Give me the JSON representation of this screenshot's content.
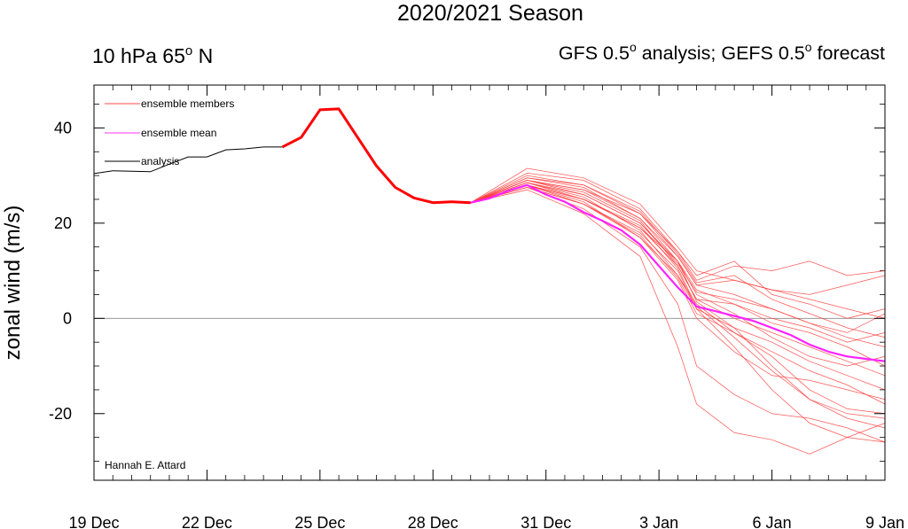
{
  "chart_data": {
    "type": "line",
    "title": "2020/2021 Season",
    "subtitle_left": {
      "text": "10 hPa 65",
      "sup": "o",
      "suffix": " N"
    },
    "subtitle_right": [
      {
        "text": "GFS 0.5",
        "sup": "o",
        "suffix": " analysis; GEFS 0.5"
      },
      {
        "sup": "o",
        "suffix": " forecast"
      }
    ],
    "ylabel": "zonal wind (m/s)",
    "xlabel": "",
    "xlim": [
      0,
      21
    ],
    "ylim": [
      -34,
      49
    ],
    "xticks": [
      {
        "x": 0,
        "label": "19 Dec"
      },
      {
        "x": 3,
        "label": "22 Dec"
      },
      {
        "x": 6,
        "label": "25 Dec"
      },
      {
        "x": 9,
        "label": "28 Dec"
      },
      {
        "x": 12,
        "label": "31 Dec"
      },
      {
        "x": 15,
        "label": "3 Jan"
      },
      {
        "x": 18,
        "label": "6 Jan"
      },
      {
        "x": 21,
        "label": "9 Jan"
      }
    ],
    "yticks": [
      {
        "y": 40,
        "label": "40"
      },
      {
        "y": 20,
        "label": "20"
      },
      {
        "y": 0,
        "label": "0"
      },
      {
        "y": -20,
        "label": "-20"
      }
    ],
    "zero_line": true,
    "legend": {
      "position": "top-left",
      "items": [
        {
          "label": "ensemble members",
          "color": "#ff4a4a"
        },
        {
          "label": "ensemble mean",
          "color": "#ff33ff"
        },
        {
          "label": "analysis",
          "color": "#000000"
        }
      ]
    },
    "credit": "Hannah E. Attard",
    "colors": {
      "members": "#ff3b3b",
      "mean": "#ff22ff",
      "analysis": "#000000",
      "spinup": "#ff0000"
    },
    "analysis": {
      "name": "analysis",
      "x": [
        0,
        0.5,
        1,
        1.5,
        2,
        2.5,
        3,
        3.5,
        4,
        4.5,
        5
      ],
      "values": [
        30.4,
        31.0,
        30.9,
        30.8,
        32.4,
        33.9,
        33.9,
        35.4,
        35.6,
        36.0,
        36.0
      ]
    },
    "spinup": {
      "x": [
        5,
        5.5,
        6,
        6.5,
        7,
        7.5,
        8,
        8.5,
        9,
        9.5,
        10
      ],
      "values": [
        36.0,
        38.0,
        43.8,
        44.0,
        38.0,
        32.0,
        27.5,
        25.3,
        24.3,
        24.5,
        24.3
      ]
    },
    "ensemble_mean": {
      "name": "ensemble mean",
      "x": [
        10,
        10.5,
        11,
        11.5,
        12,
        12.5,
        13,
        13.5,
        14,
        14.5,
        15,
        15.5,
        16,
        16.5,
        17,
        17.5,
        18,
        18.5,
        19,
        19.5,
        20,
        20.5,
        21
      ],
      "values": [
        24.3,
        25.2,
        26.8,
        28.0,
        26.0,
        24.5,
        22.3,
        20.5,
        18.5,
        15.5,
        11.0,
        6.5,
        2.5,
        1.5,
        0.5,
        -0.5,
        -2.0,
        -3.5,
        -5.5,
        -7.0,
        -8.0,
        -8.5,
        -9.0
      ]
    },
    "ensemble_members": [
      {
        "name": "member 1",
        "x": [
          10,
          11.5,
          13,
          14.5,
          15.5,
          16,
          17,
          18,
          19,
          20,
          21
        ],
        "values": [
          24.3,
          28.5,
          25.0,
          19.0,
          12.0,
          3.5,
          -2.0,
          -10.0,
          -17.0,
          -21.0,
          -23.0
        ]
      },
      {
        "name": "member 2",
        "x": [
          10,
          11.5,
          13,
          14.5,
          15.5,
          16,
          17,
          18,
          19,
          20,
          21
        ],
        "values": [
          24.3,
          28.0,
          24.0,
          17.0,
          9.0,
          2.0,
          -6.0,
          -15.0,
          -22.0,
          -25.0,
          -26.0
        ]
      },
      {
        "name": "member 3",
        "x": [
          10,
          11.5,
          13,
          14.5,
          15.5,
          16,
          17,
          18,
          19,
          20,
          21
        ],
        "values": [
          24.3,
          27.0,
          22.0,
          13.0,
          -6.0,
          -18.0,
          -24.0,
          -25.5,
          -28.5,
          -25.0,
          -22.0
        ]
      },
      {
        "name": "member 4",
        "x": [
          10,
          11.5,
          13,
          14.5,
          15.5,
          16,
          17,
          18,
          19,
          20,
          21
        ],
        "values": [
          24.3,
          27.5,
          23.0,
          15.0,
          3.0,
          -10.0,
          -16.0,
          -20.0,
          -21.0,
          -23.0,
          -26.0
        ]
      },
      {
        "name": "member 5",
        "x": [
          10,
          11.5,
          13,
          14.5,
          15.5,
          16,
          17,
          18,
          19,
          20,
          21
        ],
        "values": [
          24.3,
          29.0,
          27.0,
          22.0,
          14.0,
          8.0,
          11.0,
          10.0,
          12.0,
          9.0,
          10.0
        ]
      },
      {
        "name": "member 6",
        "x": [
          10,
          11.5,
          13,
          14.5,
          15.5,
          16,
          17,
          18,
          19,
          20,
          21
        ],
        "values": [
          24.3,
          30.5,
          29.0,
          23.0,
          14.0,
          9.0,
          12.0,
          5.0,
          3.0,
          0.0,
          2.0
        ]
      },
      {
        "name": "member 7",
        "x": [
          10,
          11.5,
          13,
          14.5,
          15.5,
          16,
          17,
          18,
          19,
          20,
          21
        ],
        "values": [
          24.3,
          29.5,
          27.5,
          21.0,
          13.0,
          7.0,
          5.0,
          2.0,
          -1.0,
          -4.0,
          -6.0
        ]
      },
      {
        "name": "member 8",
        "x": [
          10,
          11.5,
          13,
          14.5,
          15.5,
          16,
          17,
          18,
          19,
          20,
          21
        ],
        "values": [
          24.3,
          28.0,
          25.0,
          19.0,
          11.0,
          4.0,
          0.0,
          -3.0,
          -6.0,
          -9.0,
          -12.0
        ]
      },
      {
        "name": "member 9",
        "x": [
          10,
          11.5,
          13,
          14.5,
          15.5,
          16,
          17,
          18,
          19,
          20,
          21
        ],
        "values": [
          24.3,
          27.5,
          24.0,
          18.0,
          10.0,
          2.0,
          -2.0,
          -5.0,
          -9.0,
          -12.0,
          -15.0
        ]
      },
      {
        "name": "member 10",
        "x": [
          10,
          11.5,
          13,
          14.5,
          15.5,
          16,
          17,
          18,
          19,
          20,
          21
        ],
        "values": [
          24.3,
          29.0,
          27.0,
          21.0,
          12.0,
          6.0,
          3.0,
          0.0,
          -2.0,
          -5.0,
          -3.0
        ]
      },
      {
        "name": "member 11",
        "x": [
          10,
          11.5,
          13,
          14.5,
          15.5,
          16,
          17,
          18,
          19,
          20,
          21
        ],
        "values": [
          24.3,
          28.5,
          26.0,
          20.0,
          12.0,
          5.0,
          1.0,
          -4.0,
          -8.0,
          -10.0,
          -8.0
        ]
      },
      {
        "name": "member 12",
        "x": [
          10,
          11.5,
          13,
          14.5,
          15.5,
          16,
          17,
          18,
          19,
          20,
          21
        ],
        "values": [
          24.3,
          30.0,
          28.0,
          22.0,
          13.0,
          7.0,
          8.0,
          6.0,
          4.0,
          2.0,
          0.0
        ]
      },
      {
        "name": "member 13",
        "x": [
          10,
          11.5,
          13,
          14.5,
          15.5,
          16,
          17,
          18,
          19,
          20,
          21
        ],
        "values": [
          24.3,
          28.0,
          24.5,
          17.0,
          8.0,
          0.0,
          -7.0,
          -12.0,
          -13.0,
          -15.0,
          -17.0
        ]
      },
      {
        "name": "member 14",
        "x": [
          10,
          11.5,
          13,
          14.5,
          15.5,
          16,
          17,
          18,
          19,
          20,
          21
        ],
        "values": [
          24.3,
          29.0,
          26.5,
          20.5,
          11.0,
          4.0,
          3.0,
          -1.0,
          -3.0,
          -6.0,
          -10.0
        ]
      },
      {
        "name": "member 15",
        "x": [
          10,
          11.5,
          13,
          14.5,
          15.5,
          16,
          17,
          18,
          19,
          20,
          21
        ],
        "values": [
          24.3,
          31.5,
          29.5,
          24.0,
          15.0,
          10.0,
          8.0,
          6.0,
          5.0,
          7.0,
          9.0
        ]
      },
      {
        "name": "member 16",
        "x": [
          10,
          11.5,
          13,
          14.5,
          15.5,
          16,
          17,
          18,
          19,
          20,
          21
        ],
        "values": [
          24.3,
          28.5,
          25.5,
          18.5,
          9.0,
          3.0,
          -3.0,
          -7.0,
          -11.0,
          -14.0,
          -18.0
        ]
      },
      {
        "name": "member 17",
        "x": [
          10,
          11.5,
          13,
          14.5,
          15.5,
          16,
          17,
          18,
          19,
          20,
          21
        ],
        "values": [
          24.3,
          27.5,
          24.0,
          17.5,
          8.5,
          1.0,
          -3.0,
          -8.0,
          -15.0,
          -19.0,
          -20.0
        ]
      },
      {
        "name": "member 18",
        "x": [
          10,
          11.5,
          13,
          14.5,
          15.5,
          16,
          17,
          18,
          19,
          20,
          21
        ],
        "values": [
          24.3,
          29.5,
          28.0,
          22.5,
          13.5,
          7.5,
          9.0,
          4.0,
          1.0,
          -2.0,
          -4.0
        ]
      },
      {
        "name": "member 19",
        "x": [
          10,
          11.5,
          13,
          14.5,
          15.5,
          16,
          17,
          18,
          19,
          20,
          21
        ],
        "values": [
          24.3,
          28.0,
          25.0,
          19.5,
          10.5,
          2.5,
          -4.0,
          -11.0,
          -17.0,
          -20.0,
          -21.0
        ]
      },
      {
        "name": "member 20",
        "x": [
          10,
          11.5,
          13,
          14.5,
          15.5,
          16,
          17,
          18,
          19,
          20,
          21
        ],
        "values": [
          24.3,
          29.0,
          26.0,
          20.0,
          11.5,
          5.5,
          4.0,
          2.0,
          -1.0,
          -3.0,
          1.0
        ]
      }
    ]
  }
}
